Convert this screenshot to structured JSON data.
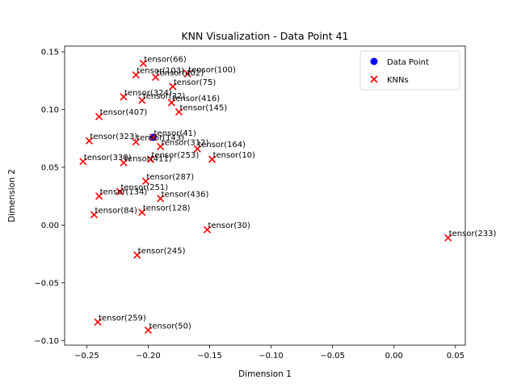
{
  "chart_data": {
    "type": "scatter",
    "title": "KNN Visualization - Data Point 41",
    "xlabel": "Dimension 1",
    "ylabel": "Dimension 2",
    "xlim": [
      -0.268,
      0.058
    ],
    "ylim": [
      -0.104,
      0.155
    ],
    "xticks": [
      -0.25,
      -0.2,
      -0.15,
      -0.1,
      -0.05,
      0.0,
      0.05
    ],
    "xtick_labels": [
      "−0.25",
      "−0.20",
      "−0.15",
      "−0.10",
      "−0.05",
      "0.00",
      "0.05"
    ],
    "yticks": [
      -0.1,
      -0.05,
      0.0,
      0.05,
      0.1,
      0.15
    ],
    "ytick_labels": [
      "−0.10",
      "−0.05",
      "0.00",
      "0.05",
      "0.10",
      "0.15"
    ],
    "legend": {
      "placement": "upper right",
      "entries": [
        {
          "label": "Data Point",
          "marker": "circle",
          "color": "#0000ff"
        },
        {
          "label": "KNNs",
          "marker": "x",
          "color": "#ff0000"
        }
      ]
    },
    "series": [
      {
        "name": "Data Point",
        "marker": "circle",
        "color": "#0000ff",
        "points": [
          {
            "label": "tensor(41)",
            "x": -0.196,
            "y": 0.076
          }
        ]
      },
      {
        "name": "KNNs",
        "marker": "x",
        "color": "#ff0000",
        "points": [
          {
            "label": "tensor(66)",
            "x": -0.204,
            "y": 0.14
          },
          {
            "label": "tensor(103)",
            "x": -0.21,
            "y": 0.13
          },
          {
            "label": "tensor(402)",
            "x": -0.194,
            "y": 0.128
          },
          {
            "label": "tensor(100)",
            "x": -0.168,
            "y": 0.131
          },
          {
            "label": "tensor(75)",
            "x": -0.18,
            "y": 0.12
          },
          {
            "label": "tensor(324)",
            "x": -0.22,
            "y": 0.111
          },
          {
            "label": "tensor(32)",
            "x": -0.205,
            "y": 0.108
          },
          {
            "label": "tensor(416)",
            "x": -0.181,
            "y": 0.106
          },
          {
            "label": "tensor(145)",
            "x": -0.175,
            "y": 0.098
          },
          {
            "label": "tensor(407)",
            "x": -0.24,
            "y": 0.094
          },
          {
            "label": "tensor(323)",
            "x": -0.248,
            "y": 0.073
          },
          {
            "label": "tensor(41)",
            "x": -0.196,
            "y": 0.076
          },
          {
            "label": "tensor(143)",
            "x": -0.21,
            "y": 0.072
          },
          {
            "label": "tensor(312)",
            "x": -0.19,
            "y": 0.068
          },
          {
            "label": "tensor(164)",
            "x": -0.16,
            "y": 0.066
          },
          {
            "label": "tensor(253)",
            "x": -0.198,
            "y": 0.057
          },
          {
            "label": "tensor(10)",
            "x": -0.148,
            "y": 0.057
          },
          {
            "label": "tensor(330)",
            "x": -0.253,
            "y": 0.055
          },
          {
            "label": "tensor(411)",
            "x": -0.22,
            "y": 0.054
          },
          {
            "label": "tensor(287)",
            "x": -0.202,
            "y": 0.038
          },
          {
            "label": "tensor(251)",
            "x": -0.223,
            "y": 0.029
          },
          {
            "label": "tensor(134)",
            "x": -0.24,
            "y": 0.025
          },
          {
            "label": "tensor(436)",
            "x": -0.19,
            "y": 0.023
          },
          {
            "label": "tensor(128)",
            "x": -0.205,
            "y": 0.011
          },
          {
            "label": "tensor(84)",
            "x": -0.244,
            "y": 0.009
          },
          {
            "label": "tensor(30)",
            "x": -0.152,
            "y": -0.004
          },
          {
            "label": "tensor(233)",
            "x": 0.044,
            "y": -0.011
          },
          {
            "label": "tensor(245)",
            "x": -0.209,
            "y": -0.026
          },
          {
            "label": "tensor(259)",
            "x": -0.241,
            "y": -0.084
          },
          {
            "label": "tensor(50)",
            "x": -0.2,
            "y": -0.091
          }
        ]
      }
    ]
  }
}
